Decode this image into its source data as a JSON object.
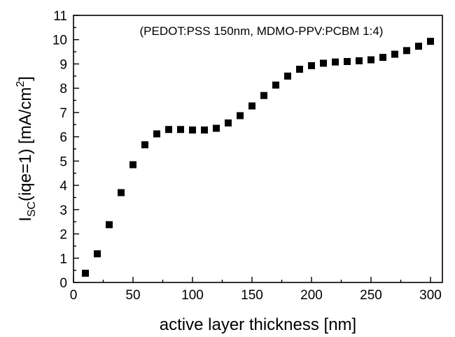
{
  "chart_data": {
    "type": "scatter",
    "annotation": "(PEDOT:PSS 150nm, MDMO-PPV:PCBM 1:4)",
    "xlabel": "active layer thickness [nm]",
    "ylabel": {
      "main": "I",
      "sub": "SC",
      "rest": "(iqe=1) [mA/cm",
      "sup": "2",
      "end": "]"
    },
    "xlim": [
      0,
      310
    ],
    "ylim": [
      0,
      11
    ],
    "xticks": [
      "0",
      "50",
      "100",
      "150",
      "200",
      "250",
      "300"
    ],
    "yticks": [
      "0",
      "1",
      "2",
      "3",
      "4",
      "5",
      "6",
      "7",
      "8",
      "9",
      "10",
      "11"
    ],
    "marker": "square",
    "marker_color": "#000000",
    "grid": false,
    "x": [
      10,
      20,
      30,
      40,
      50,
      60,
      70,
      80,
      90,
      100,
      110,
      120,
      130,
      140,
      150,
      160,
      170,
      180,
      190,
      200,
      210,
      220,
      230,
      240,
      250,
      260,
      270,
      280,
      290,
      300
    ],
    "y": [
      0.38,
      1.18,
      2.38,
      3.7,
      4.85,
      5.67,
      6.12,
      6.3,
      6.3,
      6.28,
      6.28,
      6.35,
      6.57,
      6.87,
      7.27,
      7.7,
      8.13,
      8.5,
      8.78,
      8.93,
      9.03,
      9.08,
      9.1,
      9.13,
      9.17,
      9.27,
      9.4,
      9.55,
      9.73,
      9.93
    ]
  }
}
